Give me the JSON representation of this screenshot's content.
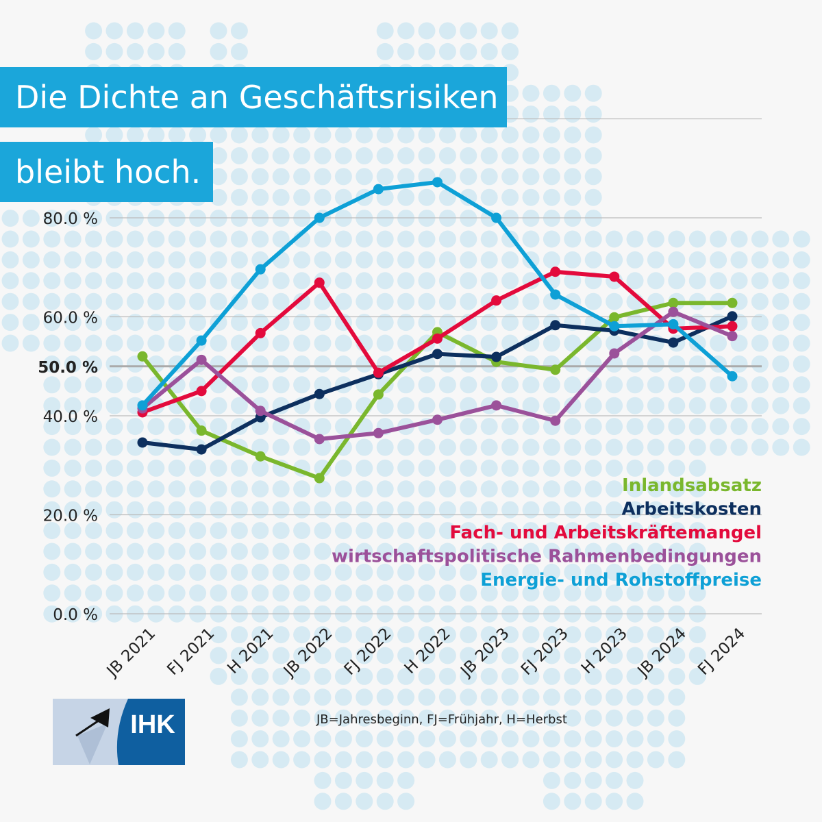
{
  "title_lines": [
    "Die Dichte an Geschäftsrisiken",
    "bleibt hoch."
  ],
  "footnote": "JB=Jahresbeginn,   FJ=Frühjahr,   H=Herbst",
  "logo_text": "IHK",
  "chart_data": {
    "type": "line",
    "categories": [
      "JB 2021",
      "FJ 2021",
      "H 2021",
      "JB 2022",
      "FJ 2022",
      "H 2022",
      "JB 2023",
      "FJ 2023",
      "H 2023",
      "JB 2024",
      "FJ 2024"
    ],
    "ylim": [
      0,
      100
    ],
    "yticks": [
      0,
      20,
      40,
      50,
      60,
      80
    ],
    "ytick_labels": [
      "0.0 %",
      "20.0 %",
      "40.0 %",
      "50.0 %",
      "60.0 %",
      "80.0 %"
    ],
    "gridlines": [
      0,
      20,
      40,
      60,
      80,
      100
    ],
    "highlight_line": 50,
    "grid": true,
    "legend_placement": "bottom-right",
    "series": [
      {
        "name": "Inlandsabsatz",
        "color": "#7ab72d",
        "values": [
          52.0,
          37.0,
          31.8,
          27.4,
          44.3,
          56.9,
          50.9,
          49.3,
          59.9,
          62.8,
          62.8
        ]
      },
      {
        "name": "Arbeitskosten",
        "color": "#0d2f5e",
        "values": [
          34.6,
          33.2,
          39.7,
          44.4,
          48.4,
          52.5,
          51.9,
          58.3,
          57.2,
          54.8,
          60.1
        ]
      },
      {
        "name": "Fach- und Arbeitskräftemangel",
        "color": "#e30a3c",
        "values": [
          40.7,
          45.0,
          56.7,
          66.9,
          48.7,
          55.6,
          63.3,
          69.1,
          68.1,
          57.6,
          58.1
        ]
      },
      {
        "name": "wirtschaftspolitische Rahmenbedingungen",
        "color": "#9b519a",
        "values": [
          41.5,
          51.3,
          41.0,
          35.3,
          36.5,
          39.2,
          42.1,
          39.0,
          52.6,
          61.0,
          56.1
        ]
      },
      {
        "name": "Energie- und Rohstoffpreise",
        "color": "#0ea0d6",
        "values": [
          42.1,
          55.2,
          69.6,
          80.0,
          85.8,
          87.2,
          80.0,
          64.5,
          58.1,
          58.5,
          48.0
        ]
      }
    ]
  }
}
